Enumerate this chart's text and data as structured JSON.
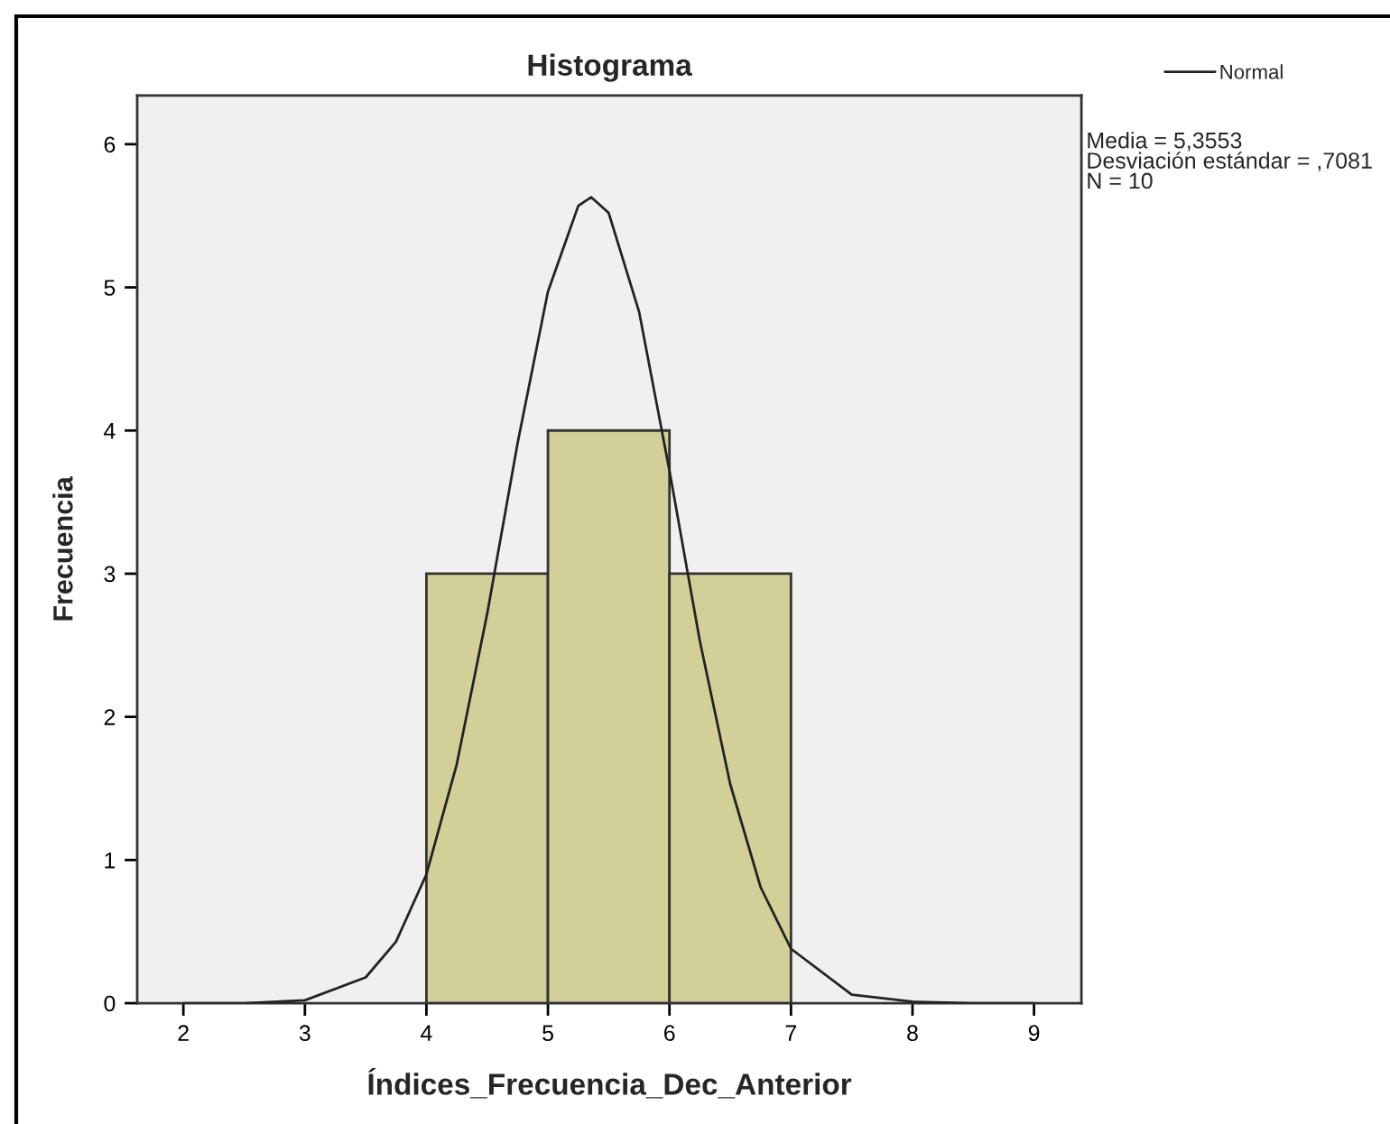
{
  "chart_data": {
    "type": "histogram",
    "title": "Histograma",
    "xlabel": "Índices_Frecuencia_Dec_Anterior",
    "ylabel": "Frecuencia",
    "bins": [
      4,
      5,
      6,
      7
    ],
    "values": [
      3,
      4,
      3
    ],
    "color": "#d3cf98",
    "series": [
      {
        "name": "Normal",
        "type": "line",
        "color": "#222222",
        "x": [
          2,
          2.5,
          3,
          3.5,
          3.75,
          4,
          4.25,
          4.5,
          4.75,
          5,
          5.25,
          5.3553,
          5.5,
          5.75,
          6,
          6.25,
          6.5,
          6.75,
          7,
          7.5,
          8,
          8.5,
          9
        ],
        "values": [
          0,
          0,
          0.02,
          0.18,
          0.43,
          0.9,
          1.67,
          2.72,
          3.91,
          4.97,
          5.57,
          5.63,
          5.52,
          4.83,
          3.72,
          2.53,
          1.53,
          0.81,
          0.38,
          0.06,
          0.01,
          0,
          0
        ]
      }
    ],
    "xlim": [
      1.62,
      9.39
    ],
    "xticks": [
      2,
      3,
      4,
      5,
      6,
      7,
      8,
      9
    ],
    "ylim": [
      0,
      6.34
    ],
    "yticks": [
      0,
      1,
      2,
      3,
      4,
      5,
      6
    ],
    "grid": false,
    "legend": "top right",
    "annotations": [
      "Media = 5,3553\nDesviación estándar = ,7081\nN = 10"
    ]
  }
}
